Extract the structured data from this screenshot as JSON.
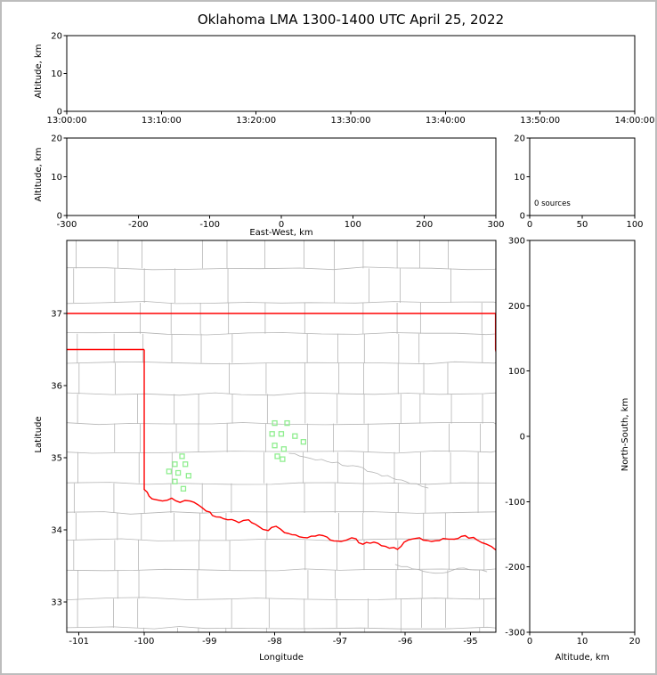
{
  "title": "Oklahoma LMA 1300-1400 UTC April 25, 2022",
  "chart_data": {
    "type": "scatter",
    "title": "Oklahoma LMA 1300-1400 UTC April 25, 2022",
    "panels": {
      "time_height": {
        "ylabel": "Altitude, km",
        "ylim": [
          0,
          20
        ],
        "yticks": [
          0,
          10,
          20
        ],
        "xticklabels": [
          "13:00:00",
          "13:10:00",
          "13:20:00",
          "13:30:00",
          "13:40:00",
          "13:50:00",
          "14:00:00"
        ],
        "points": []
      },
      "ew_height": {
        "xlabel": "East-West, km",
        "xlim": [
          -300,
          300
        ],
        "xticks": [
          -300,
          -200,
          -100,
          0,
          100,
          200,
          300
        ],
        "ylabel": "Altitude, km",
        "ylim": [
          0,
          20
        ],
        "yticks": [
          0,
          10,
          20
        ],
        "points": []
      },
      "source_histogram": {
        "annotation": "0 sources",
        "xlim": [
          0,
          100
        ],
        "xticks": [
          0,
          50,
          100
        ],
        "ylim": [
          0,
          20
        ],
        "yticks": [
          0,
          10,
          20
        ],
        "counts": []
      },
      "plan_view": {
        "xlabel": "Longitude",
        "xlim": [
          -101.19,
          -94.61
        ],
        "xticks": [
          -101,
          -100,
          -99,
          -98,
          -97,
          -96,
          -95
        ],
        "ylabel": "Latitude",
        "ylim": [
          32.57,
          38.01
        ],
        "yticks": [
          33,
          34,
          35,
          36,
          37
        ],
        "points": []
      },
      "ns_height": {
        "xlabel": "Altitude, km",
        "xlim": [
          0,
          20
        ],
        "xticks": [
          0,
          10,
          20
        ],
        "ylabel": "North-South, km",
        "ylim": [
          -300,
          300
        ],
        "yticks": [
          -300,
          -200,
          -100,
          0,
          100,
          200,
          300
        ],
        "points": []
      }
    },
    "map": {
      "state_border_color": "#ff0000",
      "county_line_color": "#b5b5b5",
      "station_marker_color": "#90ee90",
      "stations_lonlat": [
        [
          -98.0,
          35.48
        ],
        [
          -97.81,
          35.48
        ],
        [
          -98.04,
          35.33
        ],
        [
          -97.9,
          35.33
        ],
        [
          -97.69,
          35.3
        ],
        [
          -97.56,
          35.22
        ],
        [
          -98.0,
          35.17
        ],
        [
          -97.86,
          35.12
        ],
        [
          -97.96,
          35.02
        ],
        [
          -97.88,
          34.98
        ],
        [
          -99.42,
          35.02
        ],
        [
          -99.53,
          34.91
        ],
        [
          -99.37,
          34.91
        ],
        [
          -99.62,
          34.81
        ],
        [
          -99.48,
          34.79
        ],
        [
          -99.32,
          34.75
        ],
        [
          -99.53,
          34.67
        ],
        [
          -99.4,
          34.57
        ]
      ],
      "oklahoma_border": {
        "north_lat": 37.0,
        "panhandle_south_lat": 36.5,
        "west_lon": -100.0,
        "east_border_lonlat": [
          [
            -94.617,
            37.0
          ],
          [
            -94.617,
            36.5
          ],
          [
            -94.55,
            36.2
          ]
        ],
        "red_river_lonlat": [
          [
            -100.0,
            34.56
          ],
          [
            -99.88,
            34.43
          ],
          [
            -99.72,
            34.4
          ],
          [
            -99.58,
            34.44
          ],
          [
            -99.45,
            34.38
          ],
          [
            -99.3,
            34.4
          ],
          [
            -99.18,
            34.35
          ],
          [
            -99.05,
            34.26
          ],
          [
            -98.9,
            34.18
          ],
          [
            -98.72,
            34.14
          ],
          [
            -98.55,
            34.1
          ],
          [
            -98.4,
            34.14
          ],
          [
            -98.25,
            34.05
          ],
          [
            -98.1,
            33.99
          ],
          [
            -97.98,
            34.05
          ],
          [
            -97.85,
            33.96
          ],
          [
            -97.68,
            33.93
          ],
          [
            -97.5,
            33.89
          ],
          [
            -97.32,
            33.93
          ],
          [
            -97.15,
            33.86
          ],
          [
            -96.98,
            33.84
          ],
          [
            -96.82,
            33.89
          ],
          [
            -96.65,
            33.8
          ],
          [
            -96.48,
            33.83
          ],
          [
            -96.3,
            33.77
          ],
          [
            -96.12,
            33.73
          ],
          [
            -95.95,
            33.86
          ],
          [
            -95.78,
            33.89
          ],
          [
            -95.6,
            33.84
          ],
          [
            -95.42,
            33.88
          ],
          [
            -95.25,
            33.87
          ],
          [
            -95.08,
            33.92
          ],
          [
            -94.9,
            33.86
          ],
          [
            -94.75,
            33.8
          ],
          [
            -94.61,
            33.72
          ]
        ]
      },
      "rivers_lonlat": [
        [
          [
            -97.78,
            35.06
          ],
          [
            -97.45,
            34.99
          ],
          [
            -97.12,
            34.93
          ],
          [
            -96.8,
            34.89
          ],
          [
            -96.5,
            34.8
          ],
          [
            -96.2,
            34.72
          ],
          [
            -95.92,
            34.64
          ],
          [
            -95.65,
            34.58
          ]
        ],
        [
          [
            -96.15,
            33.52
          ],
          [
            -95.8,
            33.45
          ],
          [
            -95.45,
            33.4
          ],
          [
            -95.1,
            33.47
          ],
          [
            -94.75,
            33.42
          ]
        ]
      ]
    }
  }
}
